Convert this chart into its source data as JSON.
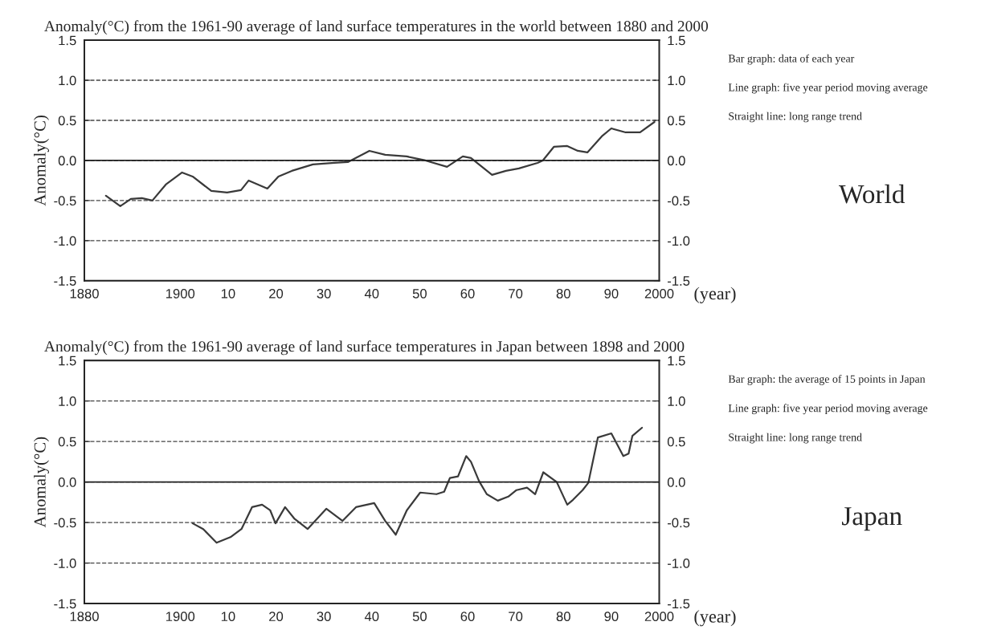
{
  "chart_data": [
    {
      "type": "line",
      "title": "Anomaly(°C) from the 1961-90 average of land surface temperatures in the world between 1880 and 2000",
      "xlabel": "(year)",
      "ylabel": "Anomaly(°C)",
      "series": [
        {
          "color": "#3a3a3a",
          "x": [
            1884.5,
            1887.5,
            1889.7,
            1892,
            1894.2,
            1897,
            1900.4,
            1902.6,
            1906.5,
            1909.8,
            1912.7,
            1914.3,
            1918.2,
            1920.5,
            1923.3,
            1927.7,
            1932.2,
            1935,
            1939.5,
            1942.8,
            1947.3,
            1951.2,
            1955.7,
            1959,
            1960.7,
            1965.1,
            1968,
            1970.7,
            1974.6,
            1975.7,
            1978,
            1980.8,
            1983,
            1985,
            1988,
            1990,
            1993,
            1996,
            1999
          ],
          "values": [
            -0.44,
            -0.57,
            -0.48,
            -0.47,
            -0.5,
            -0.3,
            -0.15,
            -0.2,
            -0.38,
            -0.4,
            -0.37,
            -0.25,
            -0.35,
            -0.2,
            -0.13,
            -0.05,
            -0.03,
            -0.02,
            0.12,
            0.07,
            0.05,
            0.0,
            -0.08,
            0.05,
            0.03,
            -0.18,
            -0.13,
            -0.1,
            -0.03,
            0.0,
            0.17,
            0.18,
            0.12,
            0.1,
            0.3,
            0.4,
            0.35,
            0.35,
            0.48
          ]
        }
      ],
      "xlim": [
        1880,
        2000
      ],
      "xticks": [
        {
          "value": 1880,
          "label": "1880"
        },
        {
          "value": 1900,
          "label": "1900"
        },
        {
          "value": 1910,
          "label": "10"
        },
        {
          "value": 1920,
          "label": "20"
        },
        {
          "value": 1930,
          "label": "30"
        },
        {
          "value": 1940,
          "label": "40"
        },
        {
          "value": 1950,
          "label": "50"
        },
        {
          "value": 1960,
          "label": "60"
        },
        {
          "value": 1970,
          "label": "70"
        },
        {
          "value": 1980,
          "label": "80"
        },
        {
          "value": 1990,
          "label": "90"
        },
        {
          "value": 2000,
          "label": "2000"
        }
      ],
      "ylim": [
        -1.5,
        1.5
      ],
      "yticks": [
        -1.5,
        {
          "value": -1,
          "label": "-1.0"
        },
        -0.5,
        {
          "value": 0,
          "label": "0.0"
        },
        0.5,
        {
          "value": 1,
          "label": "1.0"
        },
        1.5
      ],
      "y2lim": [
        -1.5,
        1.5
      ],
      "y2ticks": [
        -1.5,
        {
          "value": -1,
          "label": "-1.0"
        },
        -0.5,
        {
          "value": 0,
          "label": "0.0"
        },
        0.5,
        {
          "value": 1,
          "label": "1.0"
        },
        1.5
      ],
      "grid": "y",
      "ref_lines": [
        {
          "axis": "y",
          "value": 0,
          "line_style": "solid"
        }
      ],
      "annotations": [
        "Bar graph: data of each year",
        "Line graph: five year period moving average",
        "Straight line: long range trend",
        "World"
      ]
    },
    {
      "type": "line",
      "title": "Anomaly(°C) from the 1961-90 average of land surface temperatures in Japan between 1898 and 2000",
      "xlabel": "(year)",
      "ylabel": "Anomaly(°C)",
      "series": [
        {
          "color": "#3a3a3a",
          "x": [
            1902.6,
            1904.8,
            1907.6,
            1910.5,
            1912.8,
            1915,
            1917.1,
            1918.8,
            1919.9,
            1921.9,
            1923.8,
            1926.6,
            1930.5,
            1933.9,
            1936.7,
            1940.5,
            1942.8,
            1945,
            1947.3,
            1950.1,
            1953.5,
            1955.1,
            1956.3,
            1958,
            1959.7,
            1960.7,
            1962.4,
            1964,
            1966.3,
            1968.5,
            1970.2,
            1972.4,
            1974.1,
            1975.8,
            1978.6,
            1980.8,
            1982,
            1984,
            1985.2,
            1987.2,
            1990,
            1992.5,
            1993.6,
            1994.4,
            1996.4
          ],
          "values": [
            -0.51,
            -0.58,
            -0.75,
            -0.68,
            -0.58,
            -0.31,
            -0.28,
            -0.35,
            -0.51,
            -0.31,
            -0.45,
            -0.58,
            -0.33,
            -0.48,
            -0.31,
            -0.26,
            -0.48,
            -0.65,
            -0.35,
            -0.13,
            -0.15,
            -0.12,
            0.05,
            0.07,
            0.32,
            0.25,
            0.01,
            -0.15,
            -0.23,
            -0.18,
            -0.1,
            -0.07,
            -0.15,
            0.12,
            0.0,
            -0.28,
            -0.22,
            -0.1,
            -0.01,
            0.55,
            0.6,
            0.32,
            0.35,
            0.57,
            0.67
          ]
        }
      ],
      "xlim": [
        1880,
        2000
      ],
      "xticks": [
        {
          "value": 1880,
          "label": "1880"
        },
        {
          "value": 1900,
          "label": "1900"
        },
        {
          "value": 1910,
          "label": "10"
        },
        {
          "value": 1920,
          "label": "20"
        },
        {
          "value": 1930,
          "label": "30"
        },
        {
          "value": 1940,
          "label": "40"
        },
        {
          "value": 1950,
          "label": "50"
        },
        {
          "value": 1960,
          "label": "60"
        },
        {
          "value": 1970,
          "label": "70"
        },
        {
          "value": 1980,
          "label": "80"
        },
        {
          "value": 1990,
          "label": "90"
        },
        {
          "value": 2000,
          "label": "2000"
        }
      ],
      "ylim": [
        -1.5,
        1.5
      ],
      "yticks": [
        -1.5,
        {
          "value": -1,
          "label": "-1.0"
        },
        -0.5,
        {
          "value": 0,
          "label": "0.0"
        },
        0.5,
        {
          "value": 1,
          "label": "1.0"
        },
        1.5
      ],
      "y2lim": [
        -1.5,
        1.5
      ],
      "y2ticks": [
        -1.5,
        {
          "value": -1,
          "label": "-1.0"
        },
        -0.5,
        {
          "value": 0,
          "label": "0.0"
        },
        0.5,
        {
          "value": 1,
          "label": "1.0"
        },
        1.5
      ],
      "grid": "y",
      "ref_lines": [
        {
          "axis": "y",
          "value": 0,
          "line_style": "solid"
        }
      ],
      "annotations": [
        "Bar graph: the average of 15 points in Japan",
        "Line graph: five year period moving average",
        "Straight line: long range trend",
        "Japan"
      ]
    }
  ]
}
